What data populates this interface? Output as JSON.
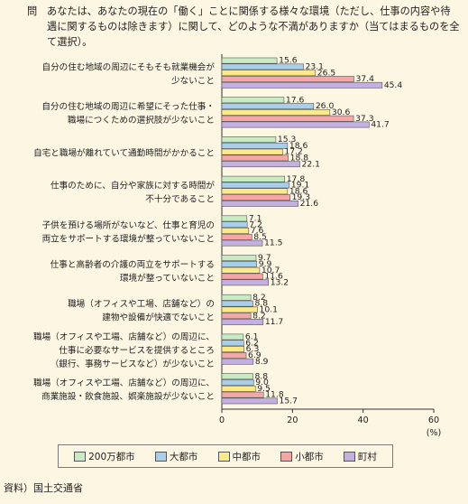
{
  "question": {
    "label": "問",
    "text": "あなたは、あなたの現在の「働く」ことに関係する様々な環境（ただし、仕事の内容や待遇に関するものは除きます）に関して、どのような不満がありますか（当てはまるものを全て選択）。"
  },
  "source": "資料）国土交通省",
  "colors": {
    "200万都市": "#c9ebc4",
    "大都市": "#a8cfe9",
    "中都市": "#fbe98a",
    "小都市": "#f5a7a7",
    "町村": "#c4b0e0"
  },
  "chart_data": {
    "type": "bar",
    "orientation": "horizontal",
    "unit": "(%)",
    "xlim": [
      0,
      60
    ],
    "xticks": [
      0,
      20,
      40,
      60
    ],
    "legend_position": "bottom",
    "categories": [
      [
        "自分の住む地域の周辺にそもそも就業機会が",
        "少ないこと"
      ],
      [
        "自分の住む地域の周辺に希望にそった仕事・",
        "職場につくための選択肢が少ないこと"
      ],
      [
        "自宅と職場が離れていて通勤時間がかかること"
      ],
      [
        "仕事のために、自分や家族に対する時間が",
        "不十分であること"
      ],
      [
        "子供を預ける場所がないなど、仕事と育児の",
        "両立をサポートする環境が整っていないこと"
      ],
      [
        "仕事と高齢者の介護の両立をサポートする",
        "環境が整っていないこと"
      ],
      [
        "職場（オフィスや工場、店舗など）の",
        "建物や設備が快適でないこと"
      ],
      [
        "職場（オフィスや工場、店舗など）の周辺に、",
        "仕事に必要なサービスを提供するところ",
        "（銀行、事務サービスなど）が少ないこと"
      ],
      [
        "職場（オフィスや工場、店舗など）の周辺に、",
        "商業施設・飲食施設、娯楽施設が少ないこと"
      ]
    ],
    "series": [
      {
        "name": "200万都市",
        "values": [
          15.6,
          17.6,
          15.3,
          17.8,
          7.1,
          9.7,
          8.2,
          6.1,
          8.8
        ]
      },
      {
        "name": "大都市",
        "values": [
          23.1,
          26.0,
          18.6,
          19.1,
          7.2,
          9.9,
          8.8,
          6.2,
          9.0
        ]
      },
      {
        "name": "中都市",
        "values": [
          26.5,
          30.6,
          17.2,
          18.6,
          7.6,
          10.7,
          10.1,
          6.3,
          9.5
        ]
      },
      {
        "name": "小都市",
        "values": [
          37.4,
          37.3,
          18.8,
          19.3,
          8.5,
          11.6,
          8.2,
          6.9,
          11.8
        ]
      },
      {
        "name": "町村",
        "values": [
          45.4,
          41.7,
          22.1,
          21.6,
          11.5,
          13.2,
          11.7,
          8.9,
          15.7
        ]
      }
    ]
  }
}
